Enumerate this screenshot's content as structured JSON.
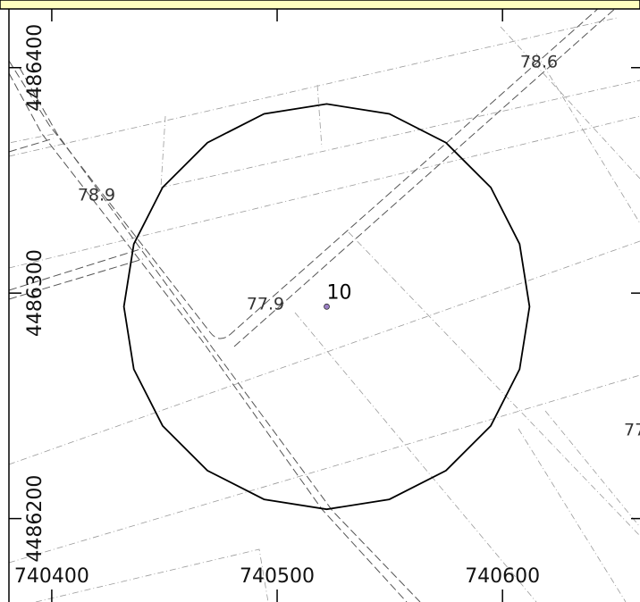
{
  "chart_data": {
    "type": "scatter",
    "xlim": [
      740381,
      740661
    ],
    "ylim": [
      4486163,
      4486430
    ],
    "xticks": [
      740400,
      740500,
      740600
    ],
    "yticks": [
      4486200,
      4486300,
      4486400
    ],
    "points": [
      {
        "label": "10",
        "x": 740522,
        "y": 4486294,
        "color": "#9b7fc4"
      }
    ],
    "buffer_radius": 90,
    "buffer_sides": 20,
    "contour_labels": [
      "78.6",
      "78.9",
      "77.9",
      "77"
    ]
  }
}
